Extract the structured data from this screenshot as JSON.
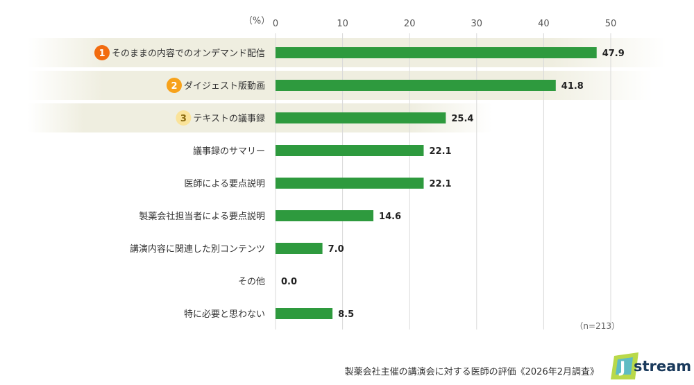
{
  "chart_data": {
    "type": "bar",
    "orientation": "horizontal",
    "categories": [
      "そのままの内容でのオンデマンド配信",
      "ダイジェスト版動画",
      "テキストの議事録",
      "議事録のサマリー",
      "医師による要点説明",
      "製薬会社担当者による要点説明",
      "講演内容に関連した別コンテンツ",
      "その他",
      "特に必要と思わない"
    ],
    "values": [
      47.9,
      41.8,
      25.4,
      22.1,
      22.1,
      14.6,
      7.0,
      0.0,
      8.5
    ],
    "value_labels": [
      "47.9",
      "41.8",
      "25.4",
      "22.1",
      "22.1",
      "14.6",
      "7.0",
      "0.0",
      "8.5"
    ],
    "ranks": [
      "1",
      "2",
      "3"
    ],
    "unit_label": "（%）",
    "xticks": [
      "0",
      "10",
      "20",
      "30",
      "40",
      "50"
    ],
    "xlim": [
      0,
      50
    ],
    "grid": true,
    "note": "（n=213）",
    "caption": "製薬会社主催の講演会に対する医師の評価《2026年2月調査》",
    "colors": {
      "bar": "#2e9a3e",
      "grid": "#d9d9d9",
      "highlight": "#efeee0",
      "rank1": "#f26b0f",
      "rank2": "#f7a21b",
      "rank3": "#fae39a"
    }
  },
  "logo": {
    "mark": "J",
    "text": "stream"
  }
}
